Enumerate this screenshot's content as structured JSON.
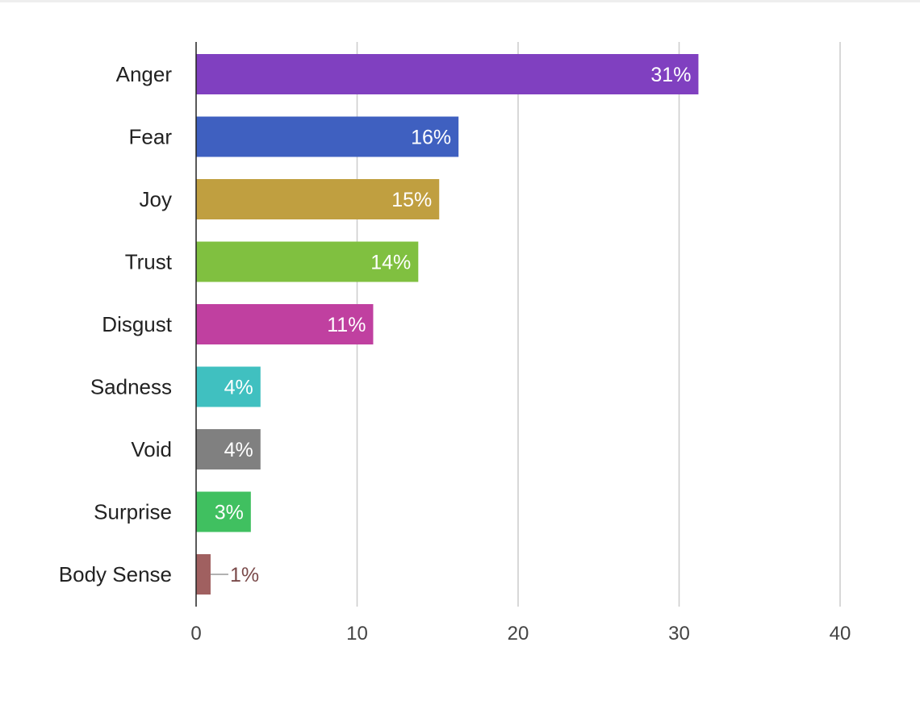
{
  "chart_data": {
    "type": "bar",
    "orientation": "horizontal",
    "categories": [
      "Anger",
      "Fear",
      "Joy",
      "Trust",
      "Disgust",
      "Sadness",
      "Void",
      "Surprise",
      "Body Sense"
    ],
    "values": [
      31.2,
      16.3,
      15.1,
      13.8,
      11.0,
      4.0,
      4.0,
      3.4,
      0.9
    ],
    "data_labels": [
      "31%",
      "16%",
      "15%",
      "14%",
      "11%",
      "4%",
      "4%",
      "3%",
      "1%"
    ],
    "colors": [
      "#8040c0",
      "#3f60c0",
      "#c09f40",
      "#80c040",
      "#c040a0",
      "#40c0c0",
      "#808080",
      "#40c060",
      "#a06060"
    ],
    "outside_label_color": "#7a4a4a",
    "xlim": [
      0,
      40
    ],
    "x_ticks": [
      0,
      10,
      20,
      30,
      40
    ],
    "x_tick_labels": [
      "0",
      "10",
      "20",
      "30",
      "40"
    ],
    "grid": "vertical",
    "legend": "none",
    "title": "",
    "xlabel": "",
    "ylabel": ""
  }
}
